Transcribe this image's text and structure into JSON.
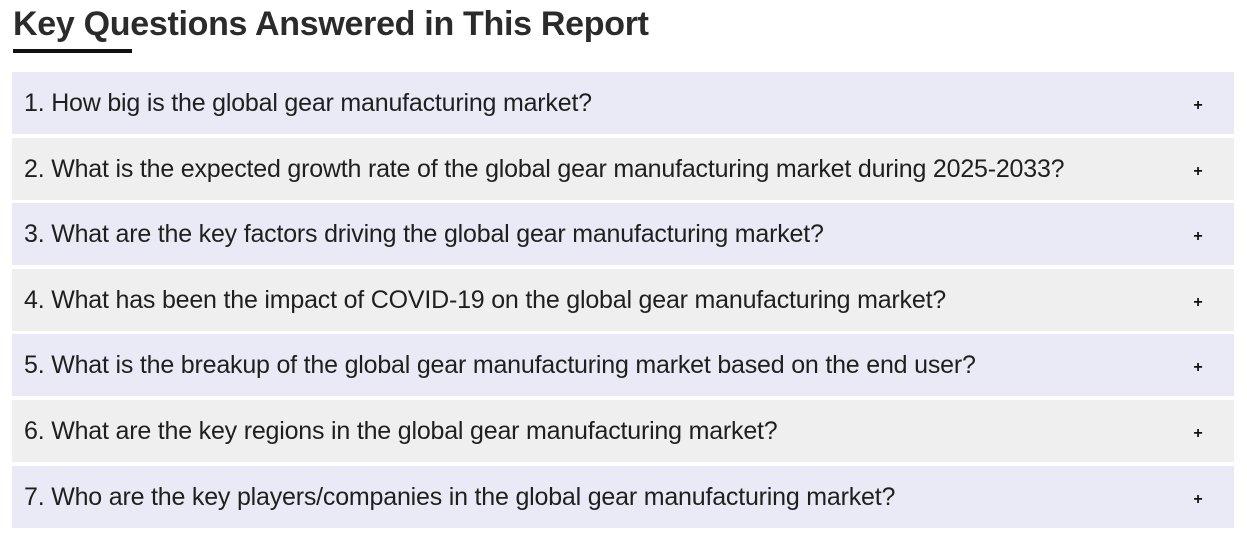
{
  "section": {
    "title": "Key Questions Answered in This Report"
  },
  "faq": {
    "toggle_symbol": "+",
    "items": [
      {
        "question": "1. How big is the global gear manufacturing market?"
      },
      {
        "question": "2. What is the expected growth rate of the global gear manufacturing market during 2025-2033?"
      },
      {
        "question": "3. What are the key factors driving the global gear manufacturing market?"
      },
      {
        "question": "4. What has been the impact of COVID-19 on the global gear manufacturing market?"
      },
      {
        "question": "5. What is the breakup of the global gear manufacturing market based on the end user?"
      },
      {
        "question": "6. What are the key regions in the global gear manufacturing market?"
      },
      {
        "question": "7. Who are the key players/companies in the global gear manufacturing market?"
      }
    ]
  },
  "colors": {
    "row_odd": "#e9eaf5",
    "row_even": "#efefef",
    "underline": "#111111"
  }
}
